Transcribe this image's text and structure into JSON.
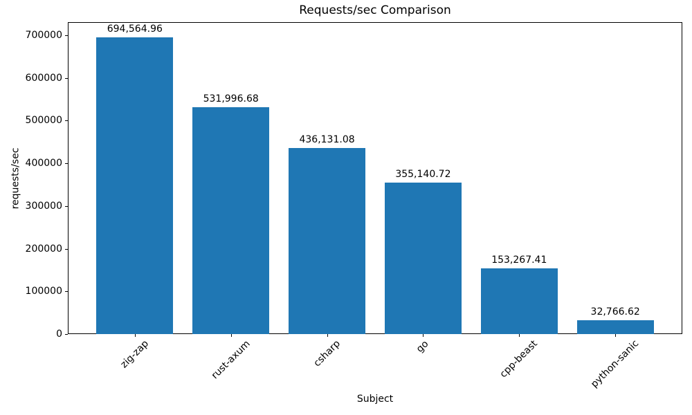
{
  "chart_data": {
    "type": "bar",
    "title": "Requests/sec Comparison",
    "xlabel": "Subject",
    "ylabel": "requests/sec",
    "categories": [
      "zig-zap",
      "rust-axum",
      "csharp",
      "go",
      "cpp-beast",
      "python-sanic"
    ],
    "values": [
      694564.96,
      531996.68,
      436131.08,
      355140.72,
      153267.41,
      32766.62
    ],
    "value_labels": [
      "694,564.96",
      "531,996.68",
      "436,131.08",
      "355,140.72",
      "153,267.41",
      "32,766.62"
    ],
    "yticks": [
      0,
      100000,
      200000,
      300000,
      400000,
      500000,
      600000,
      700000
    ],
    "ytick_labels": [
      "0",
      "100000",
      "200000",
      "300000",
      "400000",
      "500000",
      "600000",
      "700000"
    ],
    "ylim": [
      0,
      729293
    ],
    "bar_color": "#1f77b4",
    "background_color": "#ffffff",
    "grid": false,
    "legend": false,
    "xtick_rotation_deg": 45
  }
}
